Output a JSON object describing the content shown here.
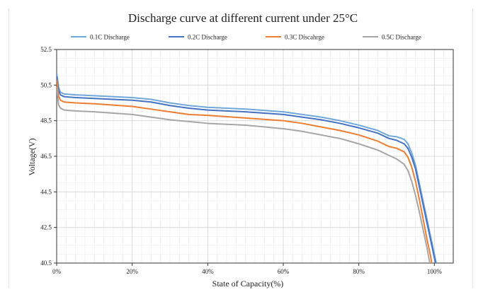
{
  "chart_data": {
    "type": "line",
    "title": "Discharge curve at different current under 25°C",
    "xlabel": "State of Capacity(%)",
    "ylabel": "Voltage(V)",
    "xlim": [
      0,
      105
    ],
    "ylim": [
      40.5,
      52.5
    ],
    "xticks": [
      0,
      20,
      40,
      60,
      80,
      100
    ],
    "xtick_labels": [
      "0%",
      "20%",
      "40%",
      "60%",
      "80%",
      "100%"
    ],
    "yticks": [
      40.5,
      42.5,
      44.5,
      46.5,
      48.5,
      50.5,
      52.5
    ],
    "ytick_labels": [
      "40.5",
      "42.5",
      "44.5",
      "46.5",
      "48.5",
      "50.5",
      "52.5"
    ],
    "grid": true,
    "legend_position": "top",
    "series": [
      {
        "name": "0.1C Discharge",
        "color": "#6fa8dc",
        "points": [
          [
            0,
            51.2
          ],
          [
            0.5,
            50.4
          ],
          [
            1,
            50.1
          ],
          [
            2,
            50.0
          ],
          [
            5,
            49.95
          ],
          [
            10,
            49.9
          ],
          [
            20,
            49.8
          ],
          [
            25,
            49.7
          ],
          [
            30,
            49.5
          ],
          [
            35,
            49.35
          ],
          [
            40,
            49.25
          ],
          [
            50,
            49.15
          ],
          [
            60,
            49.0
          ],
          [
            65,
            48.85
          ],
          [
            70,
            48.7
          ],
          [
            75,
            48.5
          ],
          [
            80,
            48.25
          ],
          [
            85,
            47.95
          ],
          [
            88,
            47.65
          ],
          [
            90,
            47.6
          ],
          [
            92,
            47.45
          ],
          [
            93,
            47.2
          ],
          [
            94,
            46.7
          ],
          [
            95,
            46.0
          ],
          [
            96,
            45.0
          ],
          [
            97,
            44.0
          ],
          [
            98,
            43.0
          ],
          [
            99,
            42.0
          ],
          [
            100,
            41.0
          ],
          [
            100.5,
            40.5
          ]
        ]
      },
      {
        "name": "0.2C Discharge",
        "color": "#4472c4",
        "points": [
          [
            0,
            51.0
          ],
          [
            0.5,
            50.2
          ],
          [
            1,
            49.95
          ],
          [
            2,
            49.85
          ],
          [
            5,
            49.8
          ],
          [
            10,
            49.75
          ],
          [
            20,
            49.65
          ],
          [
            25,
            49.55
          ],
          [
            30,
            49.35
          ],
          [
            35,
            49.2
          ],
          [
            40,
            49.1
          ],
          [
            50,
            49.0
          ],
          [
            60,
            48.85
          ],
          [
            65,
            48.7
          ],
          [
            70,
            48.55
          ],
          [
            75,
            48.35
          ],
          [
            80,
            48.1
          ],
          [
            85,
            47.8
          ],
          [
            88,
            47.5
          ],
          [
            90,
            47.4
          ],
          [
            92,
            47.2
          ],
          [
            93,
            46.95
          ],
          [
            94,
            46.45
          ],
          [
            95,
            45.8
          ],
          [
            96,
            44.8
          ],
          [
            97,
            43.8
          ],
          [
            98,
            42.8
          ],
          [
            99,
            41.8
          ],
          [
            100,
            40.8
          ],
          [
            100.3,
            40.5
          ]
        ]
      },
      {
        "name": "0.3C Discahrge",
        "color": "#ed7d31",
        "points": [
          [
            0,
            50.8
          ],
          [
            0.5,
            49.9
          ],
          [
            1,
            49.65
          ],
          [
            2,
            49.55
          ],
          [
            5,
            49.5
          ],
          [
            10,
            49.45
          ],
          [
            20,
            49.3
          ],
          [
            25,
            49.15
          ],
          [
            30,
            49.0
          ],
          [
            35,
            48.85
          ],
          [
            40,
            48.8
          ],
          [
            50,
            48.65
          ],
          [
            60,
            48.5
          ],
          [
            65,
            48.35
          ],
          [
            70,
            48.15
          ],
          [
            75,
            47.95
          ],
          [
            80,
            47.7
          ],
          [
            85,
            47.35
          ],
          [
            88,
            47.05
          ],
          [
            90,
            46.95
          ],
          [
            92,
            46.75
          ],
          [
            93,
            46.45
          ],
          [
            94,
            45.9
          ],
          [
            95,
            45.1
          ],
          [
            96,
            44.1
          ],
          [
            97,
            43.0
          ],
          [
            98,
            41.9
          ],
          [
            99,
            40.9
          ],
          [
            99.3,
            40.5
          ]
        ]
      },
      {
        "name": "0.5C Discharge",
        "color": "#a6a6a6",
        "points": [
          [
            0,
            50.4
          ],
          [
            0.5,
            49.4
          ],
          [
            1,
            49.2
          ],
          [
            2,
            49.1
          ],
          [
            5,
            49.05
          ],
          [
            10,
            49.0
          ],
          [
            20,
            48.85
          ],
          [
            25,
            48.7
          ],
          [
            30,
            48.55
          ],
          [
            35,
            48.45
          ],
          [
            40,
            48.35
          ],
          [
            50,
            48.25
          ],
          [
            60,
            48.05
          ],
          [
            65,
            47.9
          ],
          [
            70,
            47.7
          ],
          [
            75,
            47.5
          ],
          [
            80,
            47.2
          ],
          [
            85,
            46.85
          ],
          [
            88,
            46.55
          ],
          [
            90,
            46.35
          ],
          [
            92,
            46.05
          ],
          [
            93,
            45.7
          ],
          [
            94,
            45.1
          ],
          [
            95,
            44.3
          ],
          [
            96,
            43.4
          ],
          [
            97,
            42.4
          ],
          [
            98,
            41.4
          ],
          [
            98.8,
            40.5
          ]
        ]
      }
    ]
  }
}
